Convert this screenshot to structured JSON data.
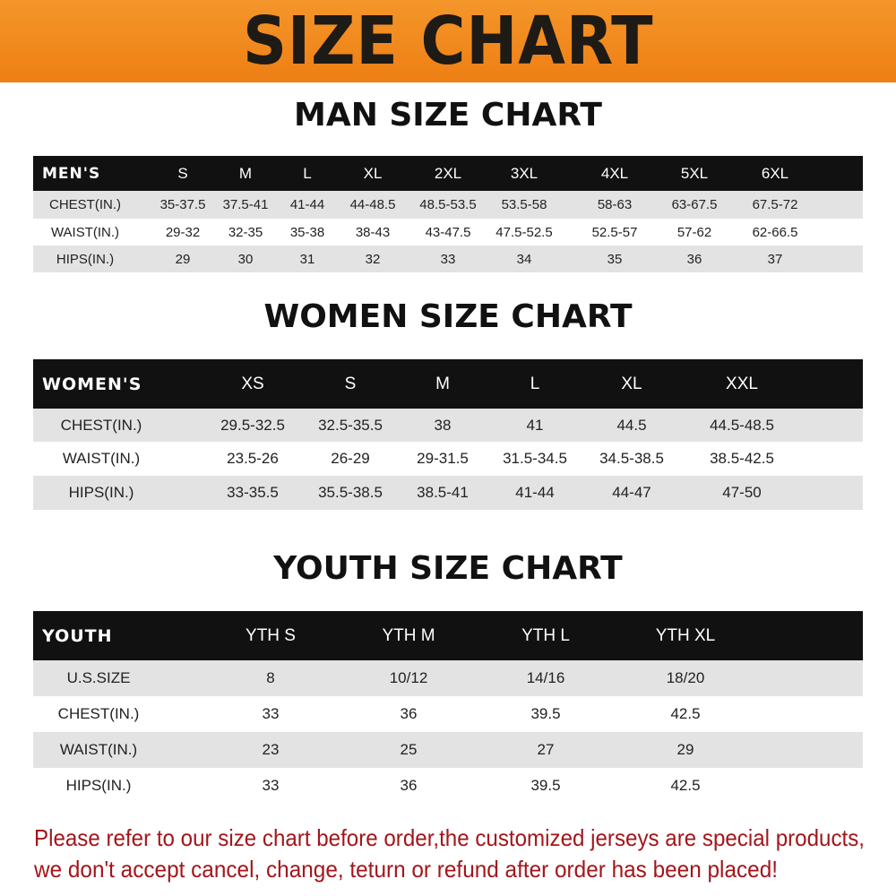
{
  "banner_title": "SIZE CHART",
  "men": {
    "title": "MAN SIZE CHART",
    "header": [
      "MEN'S",
      "S",
      "M",
      "L",
      "XL",
      "2XL",
      "3XL",
      "4XL",
      "5XL",
      "6XL"
    ],
    "rows": [
      [
        "CHEST(IN.)",
        "35-37.5",
        "37.5-41",
        "41-44",
        "44-48.5",
        "48.5-53.5",
        "53.5-58",
        "58-63",
        "63-67.5",
        "67.5-72"
      ],
      [
        "WAIST(IN.)",
        "29-32",
        "32-35",
        "35-38",
        "38-43",
        "43-47.5",
        "47.5-52.5",
        "52.5-57",
        "57-62",
        "62-66.5"
      ],
      [
        "HIPS(IN.)",
        "29",
        "30",
        "31",
        "32",
        "33",
        "34",
        "35",
        "36",
        "37"
      ]
    ]
  },
  "women": {
    "title": "WOMEN SIZE CHART",
    "header": [
      "WOMEN'S",
      "XS",
      "S",
      "M",
      "L",
      "XL",
      "XXL"
    ],
    "rows": [
      [
        "CHEST(IN.)",
        "29.5-32.5",
        "32.5-35.5",
        "38",
        "41",
        "44.5",
        "44.5-48.5"
      ],
      [
        "WAIST(IN.)",
        "23.5-26",
        "26-29",
        "29-31.5",
        "31.5-34.5",
        "34.5-38.5",
        "38.5-42.5"
      ],
      [
        "HIPS(IN.)",
        "33-35.5",
        "35.5-38.5",
        "38.5-41",
        "41-44",
        "44-47",
        "47-50"
      ]
    ]
  },
  "youth": {
    "title": "YOUTH SIZE CHART",
    "header": [
      "YOUTH",
      "YTH S",
      "YTH M",
      "YTH L",
      "YTH XL"
    ],
    "rows": [
      [
        "U.S.SIZE",
        "8",
        "10/12",
        "14/16",
        "18/20"
      ],
      [
        "CHEST(IN.)",
        "33",
        "36",
        "39.5",
        "42.5"
      ],
      [
        "WAIST(IN.)",
        "23",
        "25",
        "27",
        "29"
      ],
      [
        "HIPS(IN.)",
        "33",
        "36",
        "39.5",
        "42.5"
      ]
    ]
  },
  "notice": {
    "line1": "Please refer to our size chart before order,the customized jerseys are special products,",
    "line2": "we don't accept cancel, change, teturn or refund after order has been placed!"
  },
  "colors": {
    "banner": "#ee7f14",
    "header_row": "#111111",
    "stripe": "#e3e3e3",
    "notice": "#a3161b"
  }
}
